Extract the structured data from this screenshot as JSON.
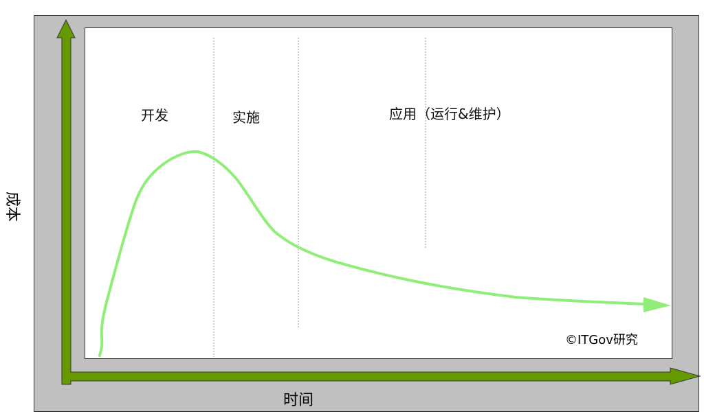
{
  "phases": [
    {
      "label": "开发"
    },
    {
      "label": "实施"
    },
    {
      "label": "应用（运行&维护）"
    }
  ],
  "axes": {
    "y_label": "成本",
    "x_label": "时间"
  },
  "copyright": "©ITGov研究",
  "colors": {
    "axis_arrow": "#669900",
    "curve": "#90ee78",
    "frame": "#c0c0c0"
  }
}
